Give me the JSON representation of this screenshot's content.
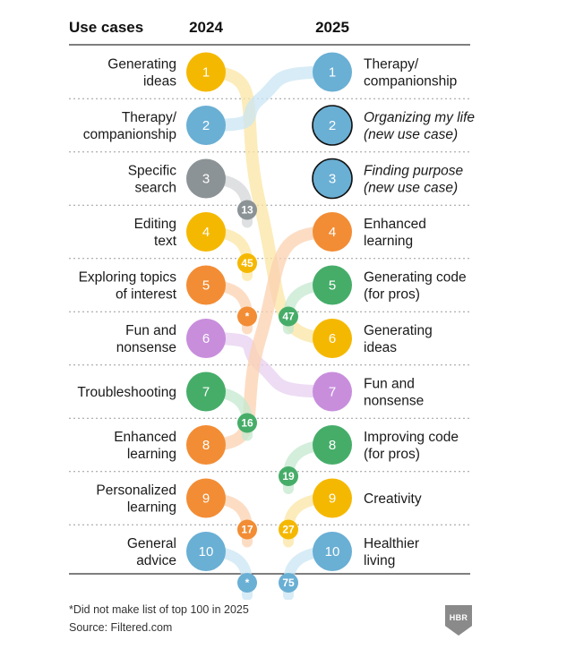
{
  "headers": {
    "use_cases": "Use cases",
    "year_left": "2024",
    "year_right": "2025"
  },
  "colors": {
    "yellow": "#f5b800",
    "blue": "#6aafd4",
    "gray": "#8c9396",
    "orange": "#f28d35",
    "purple": "#c88edc",
    "green": "#46ad69",
    "rule": "#333333",
    "dots": "#bdbdbd",
    "yellow_light": "#fbe6a4",
    "blue_light": "#c9e5f3",
    "gray_light": "#d3d6d8",
    "orange_light": "#fbd2b0",
    "purple_light": "#e7d0f0",
    "green_light": "#c4e8cf"
  },
  "chart_data": {
    "type": "bump",
    "title": "Use cases 2024 vs 2025",
    "left": [
      {
        "rank": "1",
        "label": [
          "Generating",
          "ideas"
        ],
        "color": "yellow",
        "new_rank": "6"
      },
      {
        "rank": "2",
        "label": [
          "Therapy/",
          "companionship"
        ],
        "color": "blue",
        "new_rank": "1"
      },
      {
        "rank": "3",
        "label": [
          "Specific",
          "search"
        ],
        "color": "gray",
        "new_rank": "13"
      },
      {
        "rank": "4",
        "label": [
          "Editing",
          "text"
        ],
        "color": "yellow",
        "new_rank": "45"
      },
      {
        "rank": "5",
        "label": [
          "Exploring topics",
          "of interest"
        ],
        "color": "orange",
        "new_rank": "*"
      },
      {
        "rank": "6",
        "label": [
          "Fun and",
          "nonsense"
        ],
        "color": "purple",
        "new_rank": "7"
      },
      {
        "rank": "7",
        "label": [
          "Troubleshooting"
        ],
        "color": "green",
        "new_rank": "16"
      },
      {
        "rank": "8",
        "label": [
          "Enhanced",
          "learning"
        ],
        "color": "orange",
        "new_rank": "4"
      },
      {
        "rank": "9",
        "label": [
          "Personalized",
          "learning"
        ],
        "color": "orange",
        "new_rank": "17"
      },
      {
        "rank": "10",
        "label": [
          "General",
          "advice"
        ],
        "color": "blue",
        "new_rank": "*"
      }
    ],
    "right": [
      {
        "rank": "1",
        "label": [
          "Therapy/",
          "companionship"
        ],
        "color": "blue",
        "italic": false,
        "old_rank": "2"
      },
      {
        "rank": "2",
        "label": [
          "Organizing my life",
          "(new use case)"
        ],
        "color": "blue",
        "italic": true,
        "old_rank": null
      },
      {
        "rank": "3",
        "label": [
          "Finding purpose",
          "(new use case)"
        ],
        "color": "blue",
        "italic": true,
        "old_rank": null
      },
      {
        "rank": "4",
        "label": [
          "Enhanced",
          "learning"
        ],
        "color": "orange",
        "italic": false,
        "old_rank": "8"
      },
      {
        "rank": "5",
        "label": [
          "Generating code",
          "(for pros)"
        ],
        "color": "green",
        "italic": false,
        "old_rank": "47"
      },
      {
        "rank": "6",
        "label": [
          "Generating",
          "ideas"
        ],
        "color": "yellow",
        "italic": false,
        "old_rank": "1"
      },
      {
        "rank": "7",
        "label": [
          "Fun and",
          "nonsense"
        ],
        "color": "purple",
        "italic": false,
        "old_rank": "6"
      },
      {
        "rank": "8",
        "label": [
          "Improving code",
          "(for pros)"
        ],
        "color": "green",
        "italic": false,
        "old_rank": "19"
      },
      {
        "rank": "9",
        "label": [
          "Creativity"
        ],
        "color": "yellow",
        "italic": false,
        "old_rank": "27"
      },
      {
        "rank": "10",
        "label": [
          "Healthier",
          "living"
        ],
        "color": "blue",
        "italic": false,
        "old_rank": "75"
      }
    ],
    "connections": [
      {
        "from": "1",
        "to": "6",
        "color": "yellow"
      },
      {
        "from": "2",
        "to": "1",
        "color": "blue"
      },
      {
        "from": "6",
        "to": "7",
        "color": "purple"
      },
      {
        "from": "8",
        "to": "4",
        "color": "orange"
      }
    ],
    "dropped_out": [
      {
        "from": "3",
        "new_rank": "13",
        "color": "gray"
      },
      {
        "from": "4",
        "new_rank": "45",
        "color": "yellow"
      },
      {
        "from": "5",
        "new_rank": "*",
        "color": "orange"
      },
      {
        "from": "7",
        "new_rank": "16",
        "color": "green"
      },
      {
        "from": "9",
        "new_rank": "17",
        "color": "orange"
      },
      {
        "from": "10",
        "new_rank": "*",
        "color": "blue"
      }
    ],
    "newcomers": [
      {
        "to": "5",
        "old_rank": "47",
        "color": "green"
      },
      {
        "to": "8",
        "old_rank": "19",
        "color": "green"
      },
      {
        "to": "9",
        "old_rank": "27",
        "color": "yellow"
      },
      {
        "to": "10",
        "old_rank": "75",
        "color": "blue"
      }
    ]
  },
  "footnote": "*Did not make list of top 100 in 2025",
  "source": "Source: Filtered.com",
  "logo_text": "HBR"
}
